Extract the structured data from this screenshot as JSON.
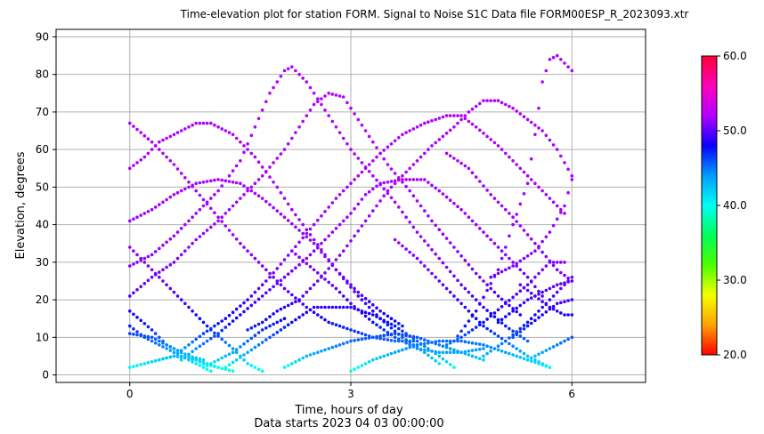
{
  "chart_data": {
    "type": "scatter",
    "title": "Time-elevation plot for station FORM.    Signal to Noise S1C    Data file FORM00ESP_R_2023093.xtr",
    "xlabel": "Time, hours of day",
    "xlabel2": "Data starts 2023 04 03 00:00:00",
    "ylabel": "Elevation, degrees",
    "xlim": [
      -1,
      7
    ],
    "ylim": [
      -2,
      92
    ],
    "xticks": [
      "0",
      "3",
      "6"
    ],
    "yticks": [
      "0",
      "10",
      "20",
      "30",
      "40",
      "50",
      "60",
      "70",
      "80",
      "90"
    ],
    "grid": true,
    "colorbar": {
      "range": [
        20,
        60
      ],
      "ticks": [
        "20.0",
        "30.0",
        "40.0",
        "50.0",
        "60.0"
      ],
      "colormap": "hsv",
      "colors": [
        "#ff0000",
        "#ffa200",
        "#f5ff00",
        "#4dff00",
        "#00ff5a",
        "#00fff2",
        "#009dff",
        "#0a00ff",
        "#b300ff",
        "#ff00bb",
        "#ff0036"
      ]
    },
    "series": [
      {
        "points": [
          [
            0.0,
            67
          ],
          [
            0.3,
            62
          ],
          [
            0.6,
            56
          ],
          [
            0.9,
            49
          ],
          [
            1.2,
            42
          ],
          [
            1.5,
            35
          ],
          [
            1.8,
            29
          ],
          [
            2.1,
            23
          ],
          [
            2.4,
            18
          ],
          [
            2.7,
            14
          ],
          [
            3.0,
            12
          ],
          [
            3.3,
            10
          ],
          [
            3.6,
            9
          ],
          [
            3.9,
            9
          ]
        ]
      },
      {
        "points": [
          [
            0.0,
            55
          ],
          [
            0.2,
            58
          ],
          [
            0.4,
            62
          ],
          [
            0.7,
            65
          ],
          [
            0.9,
            67
          ],
          [
            1.1,
            67
          ],
          [
            1.4,
            64
          ],
          [
            1.7,
            58
          ],
          [
            2.0,
            50
          ],
          [
            2.2,
            44
          ],
          [
            2.5,
            36
          ],
          [
            2.8,
            28
          ],
          [
            3.1,
            21
          ],
          [
            3.4,
            15
          ],
          [
            3.7,
            10
          ],
          [
            4.0,
            6
          ],
          [
            4.2,
            3
          ]
        ]
      },
      {
        "points": [
          [
            0.0,
            41
          ],
          [
            0.3,
            44
          ],
          [
            0.6,
            48
          ],
          [
            0.9,
            51
          ],
          [
            1.2,
            52
          ],
          [
            1.5,
            51
          ],
          [
            1.8,
            47
          ],
          [
            2.1,
            42
          ],
          [
            2.5,
            35
          ],
          [
            2.8,
            28
          ],
          [
            3.1,
            22
          ],
          [
            3.4,
            17
          ],
          [
            3.7,
            13
          ]
        ]
      },
      {
        "points": [
          [
            0.0,
            34
          ],
          [
            0.2,
            30
          ],
          [
            0.5,
            24
          ],
          [
            0.8,
            18
          ],
          [
            1.1,
            12
          ],
          [
            1.4,
            7
          ],
          [
            1.6,
            3
          ],
          [
            1.8,
            1
          ]
        ]
      },
      {
        "points": [
          [
            0.0,
            29
          ],
          [
            0.3,
            32
          ],
          [
            0.6,
            37
          ],
          [
            0.9,
            43
          ],
          [
            1.2,
            49
          ],
          [
            1.5,
            57
          ],
          [
            1.7,
            66
          ],
          [
            1.9,
            75
          ],
          [
            2.1,
            81
          ],
          [
            2.2,
            82
          ],
          [
            2.4,
            78
          ],
          [
            2.6,
            72
          ],
          [
            2.8,
            66
          ],
          [
            3.0,
            60
          ],
          [
            3.3,
            53
          ],
          [
            3.6,
            46
          ],
          [
            3.9,
            38
          ],
          [
            4.2,
            31
          ],
          [
            4.5,
            24
          ],
          [
            4.8,
            18
          ],
          [
            5.1,
            13
          ],
          [
            5.4,
            9
          ]
        ]
      },
      {
        "points": [
          [
            0.0,
            21
          ],
          [
            0.3,
            26
          ],
          [
            0.6,
            30
          ],
          [
            0.9,
            36
          ],
          [
            1.2,
            41
          ],
          [
            1.5,
            47
          ],
          [
            1.8,
            53
          ],
          [
            2.1,
            60
          ],
          [
            2.3,
            66
          ],
          [
            2.5,
            72
          ],
          [
            2.7,
            75
          ],
          [
            2.9,
            74
          ],
          [
            3.1,
            68
          ],
          [
            3.3,
            62
          ],
          [
            3.5,
            56
          ],
          [
            3.8,
            49
          ],
          [
            4.1,
            41
          ],
          [
            4.4,
            34
          ],
          [
            4.7,
            27
          ],
          [
            5.0,
            21
          ],
          [
            5.3,
            16
          ]
        ]
      },
      {
        "points": [
          [
            0.0,
            17
          ],
          [
            0.3,
            12
          ],
          [
            0.5,
            8
          ],
          [
            0.8,
            5
          ],
          [
            1.0,
            3
          ],
          [
            1.2,
            2
          ]
        ]
      },
      {
        "points": [
          [
            0.0,
            13
          ],
          [
            0.2,
            10
          ],
          [
            0.5,
            7
          ],
          [
            0.8,
            4
          ],
          [
            1.1,
            1
          ]
        ]
      },
      {
        "points": [
          [
            0.0,
            11
          ],
          [
            0.3,
            10
          ],
          [
            0.5,
            8
          ],
          [
            0.8,
            5
          ],
          [
            1.0,
            4
          ]
        ]
      },
      {
        "points": [
          [
            0.0,
            2
          ],
          [
            0.2,
            3
          ],
          [
            0.4,
            4
          ],
          [
            0.6,
            5
          ],
          [
            0.9,
            4
          ],
          [
            1.2,
            2
          ],
          [
            1.4,
            1
          ]
        ]
      },
      {
        "points": [
          [
            0.4,
            4
          ],
          [
            0.6,
            5
          ],
          [
            0.8,
            8
          ],
          [
            1.0,
            11
          ],
          [
            1.3,
            15
          ],
          [
            1.6,
            20
          ],
          [
            1.9,
            26
          ],
          [
            2.2,
            33
          ],
          [
            2.5,
            40
          ],
          [
            2.8,
            47
          ],
          [
            3.1,
            53
          ],
          [
            3.4,
            59
          ],
          [
            3.7,
            64
          ],
          [
            4.0,
            67
          ],
          [
            4.3,
            69
          ],
          [
            4.5,
            69
          ],
          [
            4.7,
            66
          ],
          [
            5.0,
            61
          ],
          [
            5.3,
            55
          ],
          [
            5.6,
            49
          ],
          [
            5.9,
            43
          ]
        ]
      },
      {
        "points": [
          [
            0.7,
            4
          ],
          [
            0.9,
            7
          ],
          [
            1.2,
            11
          ],
          [
            1.5,
            16
          ],
          [
            1.8,
            21
          ],
          [
            2.1,
            26
          ],
          [
            2.4,
            31
          ],
          [
            2.7,
            37
          ],
          [
            3.0,
            43
          ],
          [
            3.2,
            48
          ],
          [
            3.4,
            51
          ],
          [
            3.7,
            52
          ],
          [
            4.0,
            52
          ],
          [
            4.2,
            49
          ],
          [
            4.5,
            44
          ],
          [
            4.8,
            38
          ],
          [
            5.1,
            32
          ],
          [
            5.4,
            26
          ],
          [
            5.6,
            21
          ]
        ]
      },
      {
        "points": [
          [
            1.0,
            2
          ],
          [
            1.2,
            4
          ],
          [
            1.4,
            6
          ],
          [
            1.6,
            9
          ],
          [
            1.8,
            12
          ],
          [
            2.1,
            15
          ]
        ]
      },
      {
        "points": [
          [
            1.3,
            2
          ],
          [
            1.6,
            6
          ],
          [
            1.9,
            10
          ],
          [
            2.2,
            14
          ],
          [
            2.5,
            18
          ],
          [
            2.8,
            18
          ],
          [
            3.0,
            18
          ],
          [
            3.3,
            16
          ],
          [
            3.6,
            13
          ],
          [
            3.9,
            9
          ],
          [
            4.2,
            5
          ],
          [
            4.4,
            2
          ]
        ]
      },
      {
        "points": [
          [
            1.6,
            12
          ],
          [
            1.8,
            14
          ],
          [
            2.0,
            17
          ],
          [
            2.3,
            20
          ],
          [
            2.6,
            26
          ],
          [
            2.9,
            33
          ],
          [
            3.2,
            41
          ],
          [
            3.5,
            49
          ],
          [
            3.8,
            55
          ],
          [
            4.1,
            61
          ],
          [
            4.4,
            66
          ],
          [
            4.6,
            70
          ],
          [
            4.8,
            73
          ],
          [
            5.0,
            73
          ],
          [
            5.2,
            71
          ],
          [
            5.4,
            68
          ],
          [
            5.6,
            65
          ],
          [
            5.8,
            60
          ],
          [
            6.0,
            53
          ]
        ]
      },
      {
        "points": [
          [
            2.1,
            2
          ],
          [
            2.4,
            5
          ],
          [
            2.7,
            7
          ],
          [
            3.0,
            9
          ],
          [
            3.3,
            10
          ],
          [
            3.6,
            11
          ],
          [
            3.9,
            10
          ],
          [
            4.2,
            8
          ],
          [
            4.5,
            6
          ],
          [
            4.8,
            4
          ]
        ]
      },
      {
        "points": [
          [
            2.2,
            33
          ],
          [
            2.5,
            28
          ],
          [
            2.8,
            23
          ],
          [
            3.0,
            19
          ],
          [
            3.3,
            14
          ],
          [
            3.6,
            10
          ],
          [
            3.9,
            7
          ],
          [
            4.2,
            6
          ],
          [
            4.5,
            6
          ],
          [
            4.8,
            7
          ]
        ]
      },
      {
        "points": [
          [
            3.0,
            1
          ],
          [
            3.3,
            4
          ],
          [
            3.6,
            6
          ],
          [
            3.9,
            8
          ],
          [
            4.2,
            9
          ],
          [
            4.5,
            9
          ],
          [
            4.8,
            8
          ],
          [
            5.1,
            6
          ],
          [
            5.4,
            4
          ],
          [
            5.7,
            2
          ]
        ]
      },
      {
        "points": [
          [
            3.6,
            36
          ],
          [
            3.9,
            31
          ],
          [
            4.2,
            25
          ],
          [
            4.5,
            19
          ],
          [
            4.8,
            13
          ],
          [
            5.1,
            9
          ],
          [
            5.4,
            5
          ],
          [
            5.7,
            2
          ]
        ]
      },
      {
        "points": [
          [
            4.3,
            8
          ],
          [
            4.5,
            10
          ],
          [
            4.8,
            14
          ],
          [
            5.1,
            19
          ],
          [
            5.4,
            24
          ],
          [
            5.7,
            30
          ],
          [
            5.9,
            30
          ]
        ]
      },
      {
        "points": [
          [
            4.4,
            9
          ],
          [
            4.7,
            17
          ],
          [
            5.0,
            28
          ],
          [
            5.2,
            40
          ],
          [
            5.4,
            51
          ],
          [
            5.5,
            64
          ],
          [
            5.6,
            78
          ],
          [
            5.7,
            84
          ],
          [
            5.8,
            85
          ],
          [
            5.9,
            83
          ],
          [
            6.0,
            81
          ]
        ]
      },
      {
        "points": [
          [
            4.8,
            5
          ],
          [
            5.1,
            9
          ],
          [
            5.4,
            14
          ],
          [
            5.7,
            20
          ],
          [
            6.0,
            26
          ]
        ]
      },
      {
        "points": [
          [
            5.0,
            14
          ],
          [
            5.2,
            17
          ],
          [
            5.4,
            20
          ],
          [
            5.6,
            22
          ],
          [
            5.8,
            24
          ],
          [
            6.0,
            25
          ]
        ]
      },
      {
        "points": [
          [
            5.2,
            10
          ],
          [
            5.4,
            13
          ],
          [
            5.6,
            16
          ],
          [
            5.8,
            19
          ],
          [
            6.0,
            20
          ]
        ]
      },
      {
        "points": [
          [
            5.4,
            4
          ],
          [
            5.6,
            6
          ],
          [
            5.8,
            8
          ],
          [
            6.0,
            10
          ]
        ]
      },
      {
        "points": [
          [
            5.3,
            24
          ],
          [
            5.5,
            21
          ],
          [
            5.7,
            18
          ],
          [
            5.9,
            16
          ],
          [
            6.0,
            16
          ]
        ]
      },
      {
        "points": [
          [
            4.9,
            26
          ],
          [
            5.2,
            29
          ],
          [
            5.5,
            33
          ],
          [
            5.7,
            38
          ],
          [
            5.9,
            45
          ],
          [
            6.0,
            52
          ]
        ]
      },
      {
        "points": [
          [
            4.3,
            59
          ],
          [
            4.6,
            55
          ],
          [
            4.9,
            48
          ],
          [
            5.2,
            42
          ],
          [
            5.5,
            35
          ],
          [
            5.8,
            28
          ],
          [
            6.0,
            25
          ]
        ]
      }
    ]
  }
}
